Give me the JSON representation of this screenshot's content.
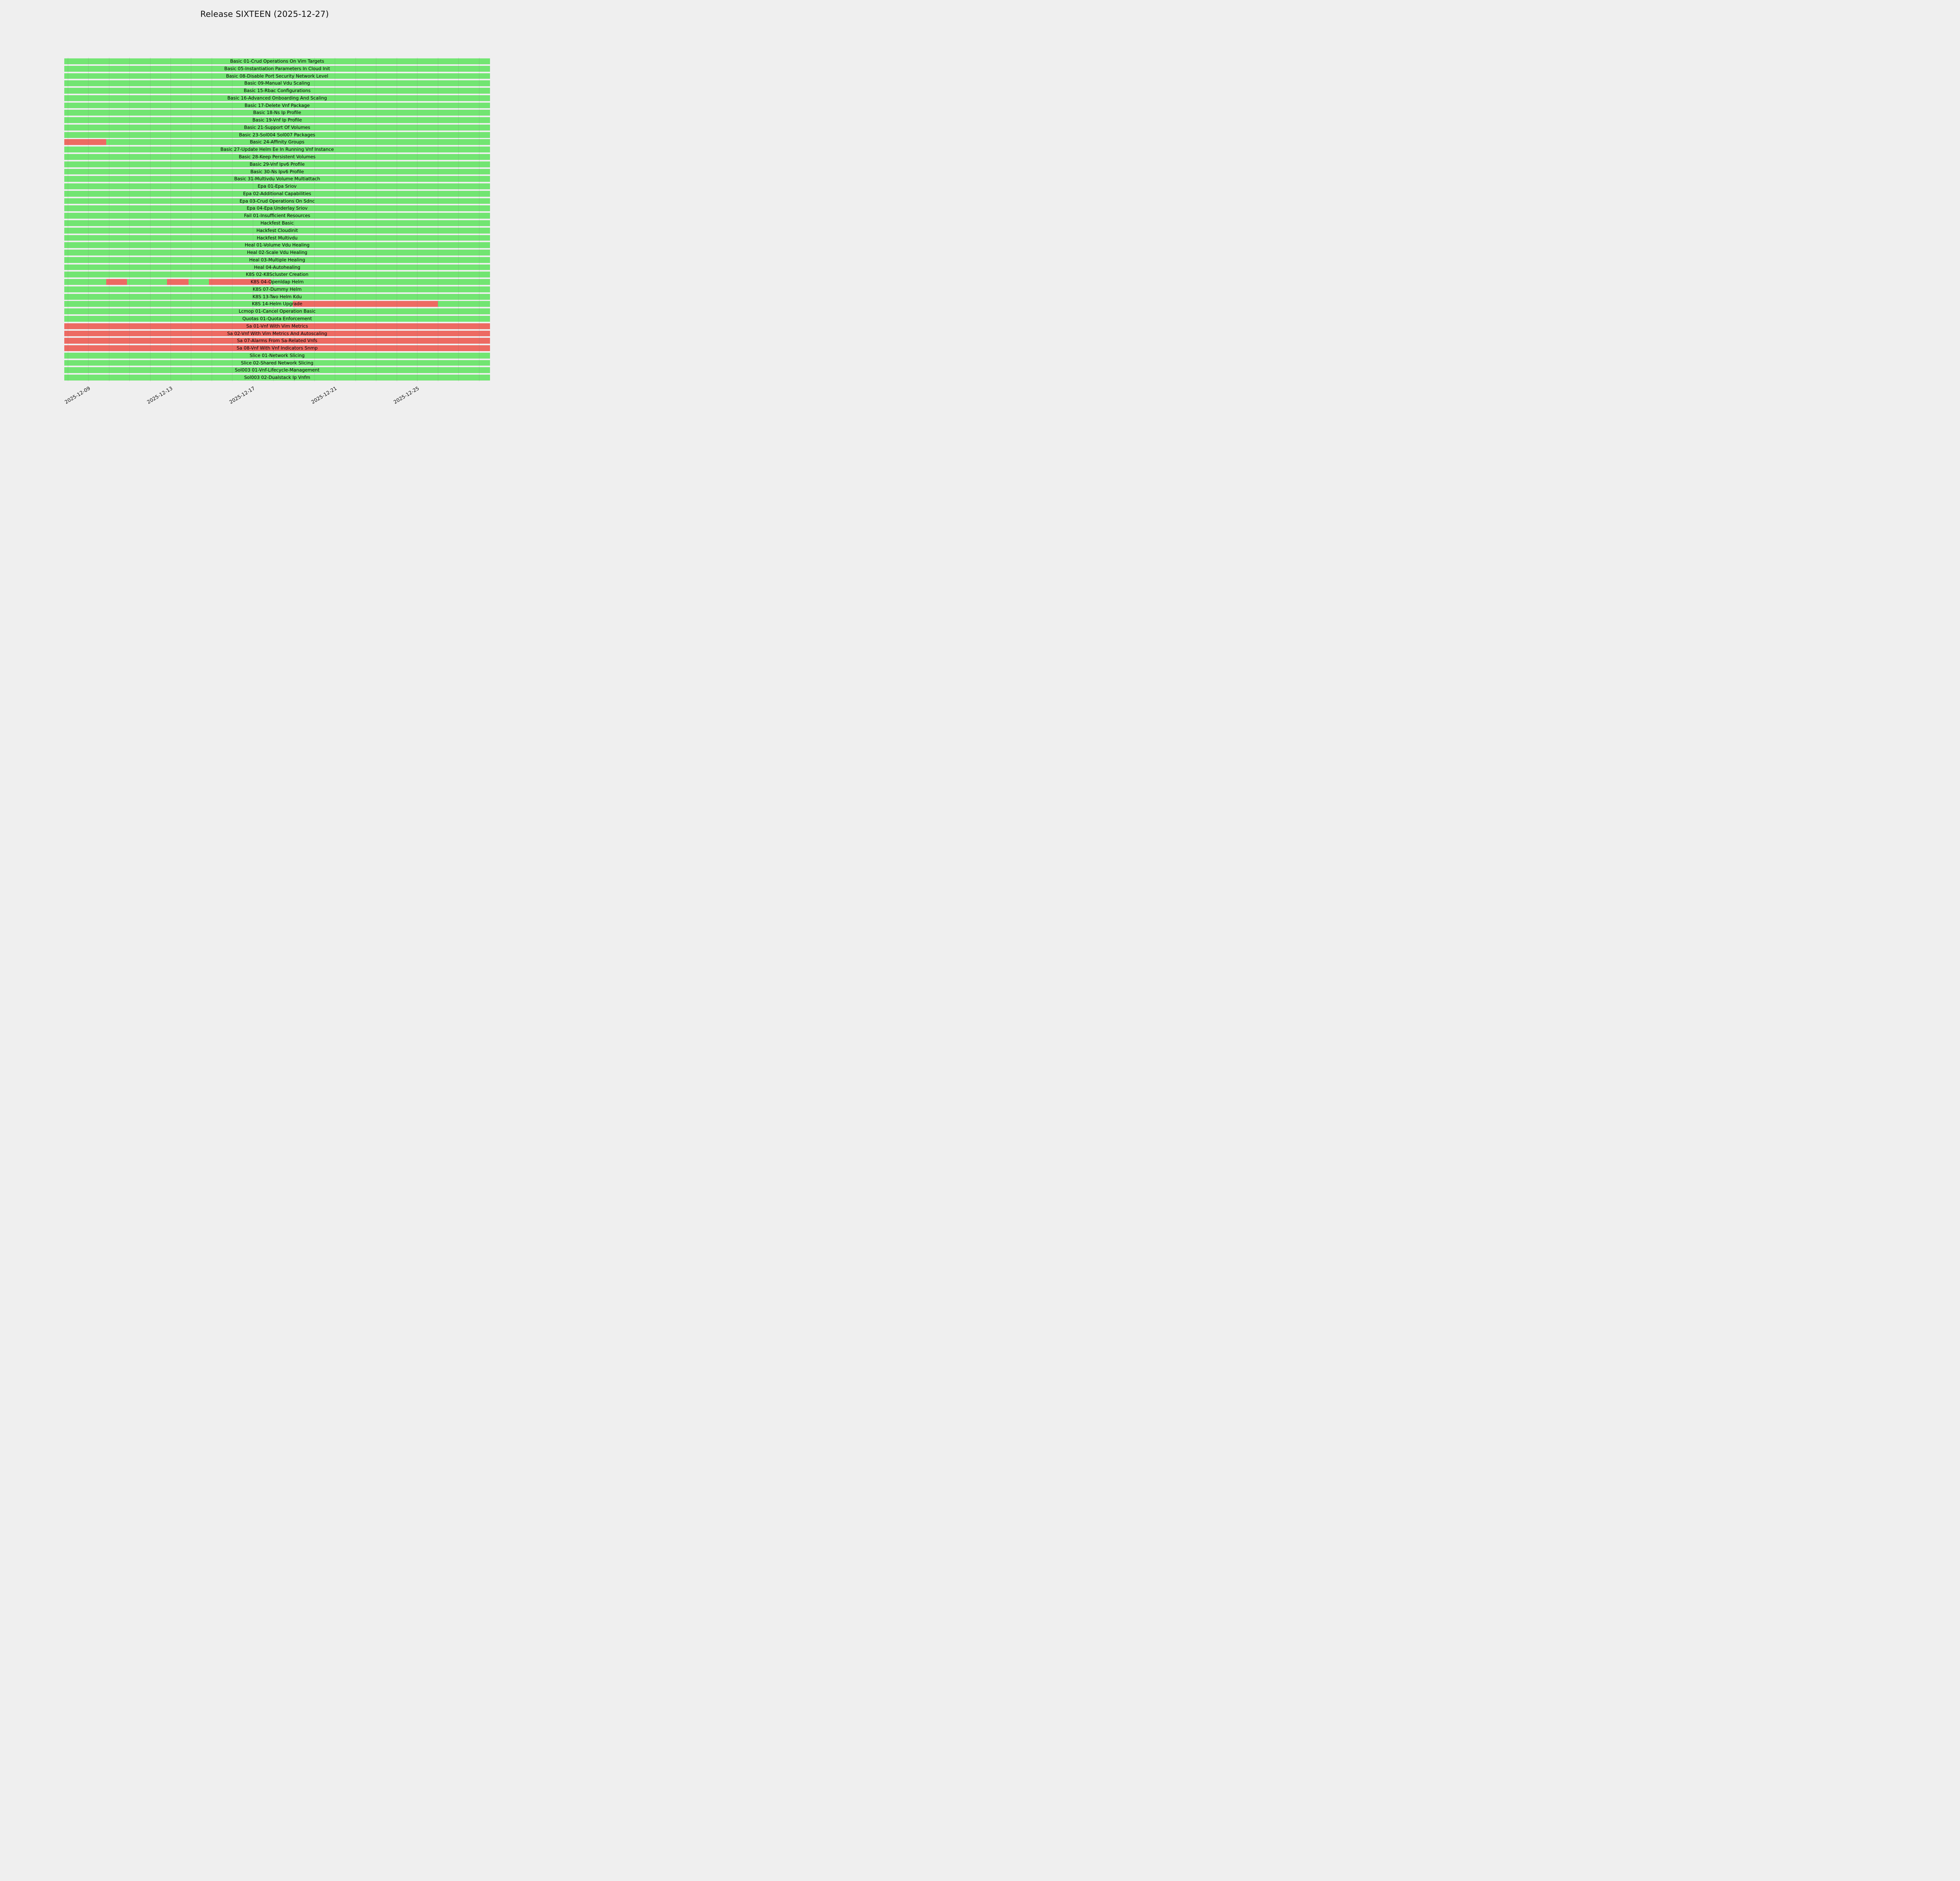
{
  "title": "Release SIXTEEN (2025-12-27)",
  "colors": {
    "background": "#efefef",
    "pass": "#72e572",
    "fail": "#ed6a62",
    "text": "#000000",
    "grid": "rgba(110,110,110,0.22)"
  },
  "chart_data": {
    "type": "gantt",
    "title": "Release SIXTEEN (2025-12-27)",
    "legend": "none",
    "grid": "daily-vertical",
    "x_axis": {
      "domain_start": "2025-12-07T20:00:00",
      "domain_end": "2025-12-28T13:00:00",
      "ticks": [
        "2025-12-09",
        "2025-12-13",
        "2025-12-17",
        "2025-12-21",
        "2025-12-25"
      ],
      "gridline_day_first": 8,
      "gridline_day_last": 28,
      "gridline_month_prefix": "2025-12-"
    },
    "status_values": {
      "pass": "green",
      "fail": "red"
    },
    "rows": [
      {
        "label": "Basic 01-Crud Operations On Vim Targets",
        "fail_segments": []
      },
      {
        "label": "Basic 05-Instantiation Parameters In Cloud Init",
        "fail_segments": []
      },
      {
        "label": "Basic 08-Disable Port Security Network Level",
        "fail_segments": []
      },
      {
        "label": "Basic 09-Manual Vdu Scaling",
        "fail_segments": []
      },
      {
        "label": "Basic 15-Rbac Configurations",
        "fail_segments": []
      },
      {
        "label": "Basic 16-Advanced Onboarding And Scaling",
        "fail_segments": []
      },
      {
        "label": "Basic 17-Delete Vnf Package",
        "fail_segments": []
      },
      {
        "label": "Basic 18-Ns Ip Profile",
        "fail_segments": []
      },
      {
        "label": "Basic 19-Vnf Ip Profile",
        "fail_segments": []
      },
      {
        "label": "Basic 21-Support Of Volumes",
        "fail_segments": []
      },
      {
        "label": "Basic 23-Sol004 Sol007 Packages",
        "fail_segments": []
      },
      {
        "label": "Basic 24-Affinity Groups",
        "fail_segments": [
          {
            "from": "axis_start",
            "to": "2025-12-09T21:00:00"
          }
        ]
      },
      {
        "label": "Basic 27-Update Helm Ee In Running Vnf Instance",
        "fail_segments": []
      },
      {
        "label": "Basic 28-Keep Persistent Volumes",
        "fail_segments": []
      },
      {
        "label": "Basic 29-Vnf Ipv6 Profile",
        "fail_segments": []
      },
      {
        "label": "Basic 30-Ns Ipv6 Profile",
        "fail_segments": []
      },
      {
        "label": "Basic 31-Multivdu Volume Multiattach",
        "fail_segments": []
      },
      {
        "label": "Epa 01-Epa Sriov",
        "fail_segments": []
      },
      {
        "label": "Epa 02-Additional Capabilities",
        "fail_segments": []
      },
      {
        "label": "Epa 03-Crud Operations On Sdnc",
        "fail_segments": []
      },
      {
        "label": "Epa 04-Epa Underlay Sriov",
        "fail_segments": []
      },
      {
        "label": "Fail 01-Insufficient Resources",
        "fail_segments": []
      },
      {
        "label": "Hackfest Basic",
        "fail_segments": []
      },
      {
        "label": "Hackfest Cloudinit",
        "fail_segments": []
      },
      {
        "label": "Hackfest Multivdu",
        "fail_segments": []
      },
      {
        "label": "Heal 01-Volume Vdu Healing",
        "fail_segments": []
      },
      {
        "label": "Heal 02-Scale Vdu Healing",
        "fail_segments": []
      },
      {
        "label": "Heal 03-Multiple Healing",
        "fail_segments": []
      },
      {
        "label": "Heal 04-Autohealing",
        "fail_segments": []
      },
      {
        "label": "K8S 02-K8Scluster Creation",
        "fail_segments": []
      },
      {
        "label": "K8S 04-Openldap Helm",
        "fail_segments": [
          {
            "from": "2025-12-09T21:00:00",
            "to": "2025-12-10T21:00:00"
          },
          {
            "from": "2025-12-12T20:00:00",
            "to": "2025-12-13T21:00:00"
          },
          {
            "from": "2025-12-14T21:00:00",
            "to": "2025-12-17T21:00:00"
          }
        ]
      },
      {
        "label": "K8S 07-Dummy Helm",
        "fail_segments": []
      },
      {
        "label": "K8S 13-Two Helm Kdu",
        "fail_segments": []
      },
      {
        "label": "K8S 14-Helm Upgrade",
        "fail_segments": [
          {
            "from": "2025-12-18T23:00:00",
            "to": "2025-12-26T00:00:00"
          }
        ]
      },
      {
        "label": "Lcmop 01-Cancel Operation Basic",
        "fail_segments": []
      },
      {
        "label": "Quotas 01-Quota Enforcement",
        "fail_segments": []
      },
      {
        "label": "Sa 01-Vnf With Vim Metrics",
        "fail_segments": [
          {
            "from": "axis_start",
            "to": "axis_end"
          }
        ]
      },
      {
        "label": "Sa 02-Vnf With Vim Metrics And Autoscaling",
        "fail_segments": [
          {
            "from": "axis_start",
            "to": "axis_end"
          }
        ]
      },
      {
        "label": "Sa 07-Alarms From Sa-Related Vnfs",
        "fail_segments": [
          {
            "from": "axis_start",
            "to": "axis_end"
          }
        ]
      },
      {
        "label": "Sa 08-Vnf With Vnf Indicators Snmp",
        "fail_segments": [
          {
            "from": "axis_start",
            "to": "axis_end"
          }
        ]
      },
      {
        "label": "Slice 01-Network Slicing",
        "fail_segments": []
      },
      {
        "label": "Slice 02-Shared Network Slicing",
        "fail_segments": []
      },
      {
        "label": "Sol003 01-Vnf-Lifecycle-Management",
        "fail_segments": []
      },
      {
        "label": "Sol003 02-Dualstack Ip Vnfm",
        "fail_segments": []
      }
    ]
  }
}
